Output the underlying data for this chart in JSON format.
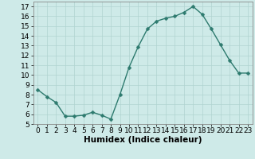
{
  "x": [
    0,
    1,
    2,
    3,
    4,
    5,
    6,
    7,
    8,
    9,
    10,
    11,
    12,
    13,
    14,
    15,
    16,
    17,
    18,
    19,
    20,
    21,
    22,
    23
  ],
  "y": [
    8.5,
    7.8,
    7.2,
    5.8,
    5.8,
    5.9,
    6.2,
    5.9,
    5.5,
    8.0,
    10.8,
    12.9,
    14.7,
    15.5,
    15.8,
    16.0,
    16.4,
    17.0,
    16.2,
    14.7,
    13.1,
    11.5,
    10.2,
    10.2
  ],
  "line_color": "#2d7a6e",
  "marker_color": "#2d7a6e",
  "bg_color": "#ceeae8",
  "grid_color": "#b0d4d0",
  "xlabel": "Humidex (Indice chaleur)",
  "xlim": [
    -0.5,
    23.5
  ],
  "ylim": [
    5,
    17.5
  ],
  "yticks": [
    5,
    6,
    7,
    8,
    9,
    10,
    11,
    12,
    13,
    14,
    15,
    16,
    17
  ],
  "xtick_labels": [
    "0",
    "1",
    "2",
    "3",
    "4",
    "5",
    "6",
    "7",
    "8",
    "9",
    "10",
    "11",
    "12",
    "13",
    "14",
    "15",
    "16",
    "17",
    "18",
    "19",
    "20",
    "21",
    "22",
    "23"
  ],
  "fontsize_xlabel": 7.5,
  "fontsize_ticks": 6.5,
  "line_width": 1.0,
  "marker_size": 2.5
}
